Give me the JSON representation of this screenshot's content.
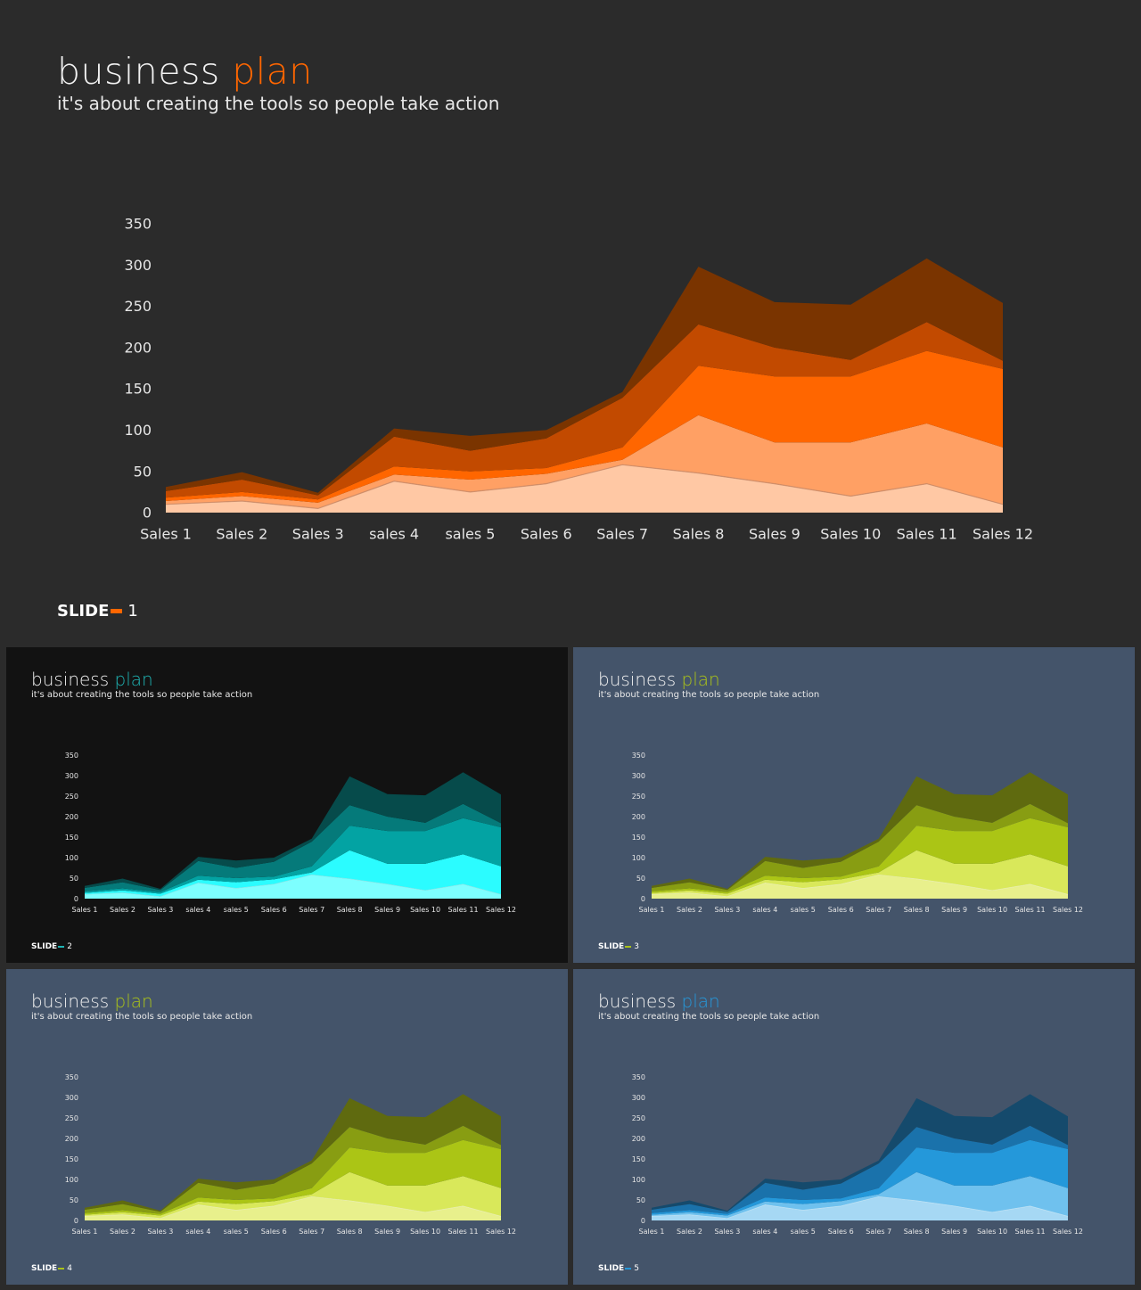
{
  "title_word": "business",
  "title_accent": "plan",
  "subtitle": "it's about creating the tools so people take action",
  "slide_label": "SLIDE",
  "slides": [
    {
      "number": "1",
      "background": "#2b2b2b",
      "accent": "#ff6600",
      "layer_colors": [
        "#ffc8a4",
        "#ffa064",
        "#ff6600",
        "#c24a00",
        "#7a3400"
      ],
      "edge_color": "#c88866"
    },
    {
      "number": "2",
      "background": "#121212",
      "accent": "#1fb3b3",
      "layer_colors": [
        "#7dffff",
        "#2bfcff",
        "#03a3a3",
        "#057a7a",
        "#064b4b"
      ],
      "edge_color": "#9aeaea"
    },
    {
      "number": "3",
      "background": "#44546a",
      "accent": "#aac219",
      "layer_colors": [
        "#e8f08c",
        "#d9e85a",
        "#abc515",
        "#889d12",
        "#5f6a0f"
      ],
      "edge_color": "#f0f4c0"
    },
    {
      "number": "4",
      "background": "#44546a",
      "accent": "#aac219",
      "layer_colors": [
        "#e8f08c",
        "#d9e85a",
        "#abc515",
        "#889d12",
        "#5f6a0f"
      ],
      "edge_color": "#f0f4c0"
    },
    {
      "number": "5",
      "background": "#44546a",
      "accent": "#2698da",
      "layer_colors": [
        "#a6d8f4",
        "#6fc1ee",
        "#2498da",
        "#1a72ab",
        "#154a6c"
      ],
      "edge_color": "#d0ecfa"
    }
  ],
  "chart_data": {
    "type": "area",
    "stacked": true,
    "categories": [
      "Sales 1",
      "Sales 2",
      "Sales 3",
      "sales 4",
      "sales 5",
      "Sales 6",
      "Sales 7",
      "Sales 8",
      "Sales 9",
      "Sales 10",
      "Sales 11",
      "Sales 12"
    ],
    "series": [
      {
        "values": [
          10,
          14,
          5,
          38,
          25,
          35,
          58,
          48,
          35,
          20,
          35,
          10
        ]
      },
      {
        "values": [
          4,
          6,
          7,
          8,
          15,
          12,
          6,
          70,
          50,
          65,
          73,
          69
        ]
      },
      {
        "values": [
          4,
          5,
          4,
          10,
          10,
          7,
          15,
          60,
          80,
          80,
          88,
          95
        ]
      },
      {
        "values": [
          8,
          15,
          5,
          36,
          25,
          36,
          60,
          50,
          35,
          20,
          35,
          10
        ]
      },
      {
        "values": [
          5,
          9,
          3,
          10,
          18,
          10,
          7,
          70,
          55,
          67,
          77,
          70
        ]
      }
    ],
    "yticks": [
      0,
      50,
      100,
      150,
      200,
      250,
      300,
      350
    ],
    "ylim": [
      0,
      350
    ],
    "grid": false,
    "legend": "none"
  }
}
